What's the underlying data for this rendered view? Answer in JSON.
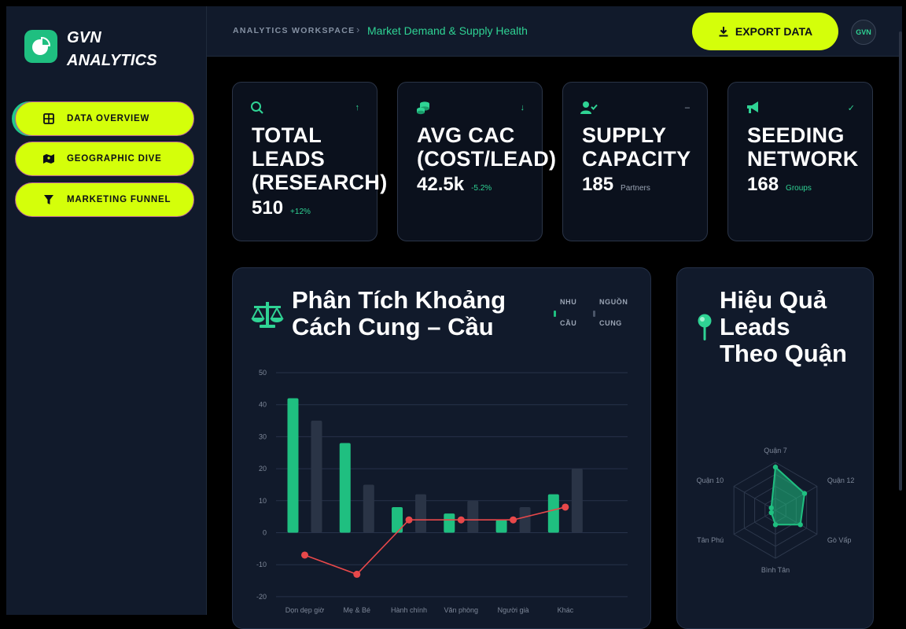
{
  "brand": {
    "line1": "GVN",
    "line2": "ANALYTICS"
  },
  "nav": [
    {
      "label": "DATA OVERVIEW",
      "icon": "grid-icon",
      "active": true
    },
    {
      "label": "GEOGRAPHIC DIVE",
      "icon": "map-icon",
      "active": false
    },
    {
      "label": "MARKETING FUNNEL",
      "icon": "funnel-icon",
      "active": false
    }
  ],
  "header": {
    "breadcrumb_root": "ANALYTICS WORKSPACE",
    "breadcrumb_sep": "›",
    "breadcrumb_current": "Market Demand & Supply Health",
    "export_label": "EXPORT DATA",
    "avatar_initials": "GVN"
  },
  "kpis": [
    {
      "icon": "search-icon",
      "trend": "↑",
      "title": [
        "TOTAL",
        "LEADS",
        "(RESEARCH)"
      ],
      "value": "510",
      "sub": "+12%"
    },
    {
      "icon": "coins-icon",
      "trend": "↓",
      "title": [
        "AVG CAC",
        "(COST/LEAD)"
      ],
      "value": "42.5k",
      "sub": "-5.2%"
    },
    {
      "icon": "user-check-icon",
      "trend": "–",
      "title": [
        "SUPPLY",
        "CAPACITY"
      ],
      "value": "185",
      "sub": "Partners"
    },
    {
      "icon": "megaphone-icon",
      "trend": "✓",
      "title": [
        "SEEDING",
        "NETWORK"
      ],
      "value": "168",
      "sub": "Groups"
    }
  ],
  "gap_panel": {
    "title": [
      "Phân Tích Khoảng",
      "Cách Cung – Cầu"
    ],
    "legend": [
      {
        "label": [
          "NHU",
          "CẦU"
        ],
        "color": "#1fbf80"
      },
      {
        "label": [
          "NGUỒN",
          "CUNG"
        ],
        "color": "#4a5568"
      }
    ]
  },
  "district_panel": {
    "title": [
      "Hiệu Quả",
      "Leads",
      "Theo Quận"
    ]
  },
  "colors": {
    "accent": "#d4ff0a",
    "demand": "#1fbf80",
    "supply": "#2a3446",
    "gap": "#e8484a"
  },
  "chart_data": [
    {
      "type": "bar",
      "categories": [
        "Dọn dẹp giờ",
        "Mẹ & Bé",
        "Hành chính",
        "Văn phòng",
        "Người già",
        "Khác"
      ],
      "series": [
        {
          "name": "NHU CẦU",
          "kind": "bar",
          "values": [
            42,
            28,
            8,
            6,
            4,
            12
          ]
        },
        {
          "name": "NGUỒN CUNG",
          "kind": "bar",
          "values": [
            35,
            15,
            12,
            10,
            8,
            20
          ]
        },
        {
          "kind": "line",
          "values": [
            -7,
            -13,
            4,
            4,
            4,
            8
          ]
        }
      ],
      "ylim": [
        -20,
        50
      ],
      "yticks": [
        50,
        40,
        30,
        20,
        10,
        0,
        -10,
        -20
      ],
      "grid": true,
      "legend": "top-right"
    },
    {
      "type": "radar",
      "categories": [
        "Quận 7",
        "Quận 12",
        "Gò Vấp",
        "Bình Tân",
        "Tân Phú",
        "Quận 10"
      ],
      "values": [
        90,
        70,
        60,
        30,
        10,
        10
      ],
      "max": 100,
      "levels": 4
    }
  ]
}
